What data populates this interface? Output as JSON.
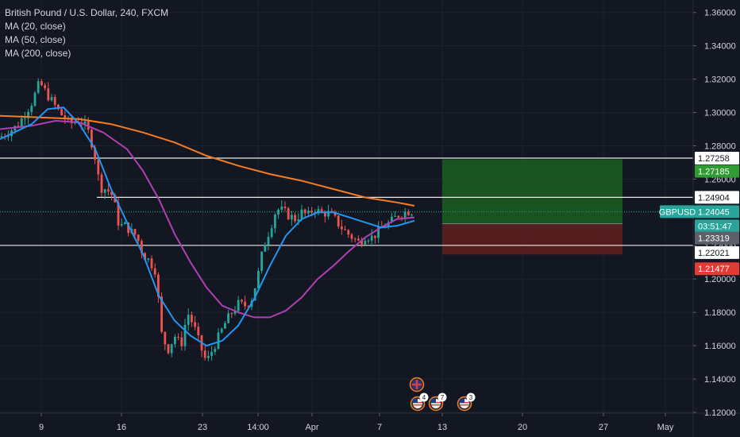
{
  "legend": {
    "title": "British Pound / U.S. Dollar, 240, FXCM",
    "indicators": [
      "MA (20, close)",
      "MA (50, close)",
      "MA (200, close)"
    ]
  },
  "colors": {
    "background": "#131722",
    "grid": "#1e222d",
    "text": "#d1d4dc",
    "candle_up": "#26a69a",
    "candle_down": "#ef5350",
    "ma20": "#2196f3",
    "ma50": "#b13fb4",
    "ma200": "#f57c23",
    "level_line": "#e8e8e8",
    "current_price": "#26a69a",
    "take_profit_zone": "#1b5e20",
    "stop_loss_zone": "#5c1f1f",
    "take_profit_badge": "#2e9c32",
    "stop_loss_badge": "#e53935",
    "entry_badge": "#5d606b"
  },
  "chart_data": {
    "type": "candlestick",
    "symbol": "GBPUSD",
    "y_ticks": [
      "1.36000",
      "1.34000",
      "1.32000",
      "1.30000",
      "1.28000",
      "1.26000",
      "1.24000",
      "1.22000",
      "1.20000",
      "1.18000",
      "1.16000",
      "1.14000",
      "1.12000"
    ],
    "x_ticks": [
      "9",
      "16",
      "23",
      "14:00",
      "Apr",
      "7",
      "13",
      "20",
      "27",
      "May"
    ],
    "ylim": [
      1.1195,
      1.3675
    ],
    "horizontal_levels": [
      1.27258,
      1.24904,
      1.22021
    ],
    "current_price": 1.24045,
    "price_badges": [
      {
        "label": "1.27258",
        "kind": "level"
      },
      {
        "label": "1.27185",
        "kind": "take_profit"
      },
      {
        "label": "1.24904",
        "kind": "level"
      },
      {
        "label": "1.24045",
        "kind": "current",
        "prefix": "GBPUSD"
      },
      {
        "label": "03:51:47",
        "kind": "countdown"
      },
      {
        "label": "1.23319",
        "kind": "entry"
      },
      {
        "label": "1.22021",
        "kind": "level"
      },
      {
        "label": "1.21477",
        "kind": "stop_loss"
      }
    ],
    "position": {
      "entry": 1.23319,
      "take_profit": 1.27185,
      "stop_loss": 1.21477
    },
    "price_waypoints": [
      [
        0,
        1.285
      ],
      [
        22,
        1.292
      ],
      [
        40,
        1.306
      ],
      [
        50,
        1.318
      ],
      [
        55,
        1.314
      ],
      [
        62,
        1.309
      ],
      [
        75,
        1.3
      ],
      [
        88,
        1.293
      ],
      [
        100,
        1.296
      ],
      [
        110,
        1.29
      ],
      [
        118,
        1.278
      ],
      [
        126,
        1.255
      ],
      [
        134,
        1.254
      ],
      [
        142,
        1.25
      ],
      [
        150,
        1.232
      ],
      [
        158,
        1.232
      ],
      [
        166,
        1.228
      ],
      [
        172,
        1.226
      ],
      [
        180,
        1.215
      ],
      [
        188,
        1.211
      ],
      [
        196,
        1.205
      ],
      [
        204,
        1.165
      ],
      [
        212,
        1.158
      ],
      [
        220,
        1.166
      ],
      [
        228,
        1.16
      ],
      [
        236,
        1.18
      ],
      [
        244,
        1.172
      ],
      [
        252,
        1.16
      ],
      [
        260,
        1.15
      ],
      [
        268,
        1.158
      ],
      [
        276,
        1.166
      ],
      [
        284,
        1.174
      ],
      [
        292,
        1.18
      ],
      [
        300,
        1.185
      ],
      [
        308,
        1.184
      ],
      [
        316,
        1.187
      ],
      [
        324,
        1.2
      ],
      [
        332,
        1.22
      ],
      [
        340,
        1.23
      ],
      [
        348,
        1.242
      ],
      [
        356,
        1.241
      ],
      [
        364,
        1.238
      ],
      [
        372,
        1.236
      ],
      [
        380,
        1.24
      ],
      [
        388,
        1.238
      ],
      [
        396,
        1.243
      ],
      [
        404,
        1.239
      ],
      [
        412,
        1.24
      ],
      [
        420,
        1.237
      ],
      [
        428,
        1.232
      ],
      [
        436,
        1.228
      ],
      [
        444,
        1.225
      ],
      [
        452,
        1.222
      ],
      [
        460,
        1.226
      ],
      [
        468,
        1.225
      ],
      [
        476,
        1.228
      ],
      [
        484,
        1.232
      ],
      [
        492,
        1.234
      ],
      [
        500,
        1.238
      ],
      [
        508,
        1.24
      ],
      [
        516,
        1.241
      ],
      [
        522,
        1.2405
      ]
    ],
    "ma20": [
      [
        0,
        1.284
      ],
      [
        40,
        1.293
      ],
      [
        60,
        1.302
      ],
      [
        80,
        1.303
      ],
      [
        100,
        1.293
      ],
      [
        120,
        1.278
      ],
      [
        140,
        1.254
      ],
      [
        160,
        1.234
      ],
      [
        180,
        1.215
      ],
      [
        200,
        1.19
      ],
      [
        220,
        1.175
      ],
      [
        240,
        1.166
      ],
      [
        260,
        1.16
      ],
      [
        280,
        1.163
      ],
      [
        300,
        1.172
      ],
      [
        320,
        1.188
      ],
      [
        340,
        1.208
      ],
      [
        360,
        1.226
      ],
      [
        380,
        1.236
      ],
      [
        400,
        1.24
      ],
      [
        420,
        1.24
      ],
      [
        440,
        1.237
      ],
      [
        460,
        1.234
      ],
      [
        480,
        1.231
      ],
      [
        500,
        1.232
      ],
      [
        522,
        1.235
      ]
    ],
    "ma50": [
      [
        0,
        1.29
      ],
      [
        40,
        1.292
      ],
      [
        70,
        1.295
      ],
      [
        100,
        1.294
      ],
      [
        130,
        1.288
      ],
      [
        160,
        1.278
      ],
      [
        180,
        1.265
      ],
      [
        200,
        1.248
      ],
      [
        220,
        1.227
      ],
      [
        240,
        1.21
      ],
      [
        260,
        1.195
      ],
      [
        280,
        1.184
      ],
      [
        300,
        1.18
      ],
      [
        320,
        1.177
      ],
      [
        340,
        1.177
      ],
      [
        360,
        1.181
      ],
      [
        380,
        1.189
      ],
      [
        400,
        1.2
      ],
      [
        420,
        1.208
      ],
      [
        440,
        1.217
      ],
      [
        460,
        1.225
      ],
      [
        480,
        1.231
      ],
      [
        500,
        1.236
      ],
      [
        522,
        1.237
      ]
    ],
    "ma200": [
      [
        0,
        1.298
      ],
      [
        50,
        1.297
      ],
      [
        100,
        1.296
      ],
      [
        140,
        1.293
      ],
      [
        180,
        1.288
      ],
      [
        220,
        1.282
      ],
      [
        260,
        1.274
      ],
      [
        300,
        1.268
      ],
      [
        340,
        1.263
      ],
      [
        380,
        1.259
      ],
      [
        420,
        1.254
      ],
      [
        460,
        1.249
      ],
      [
        500,
        1.246
      ],
      [
        522,
        1.244
      ]
    ]
  },
  "events": [
    {
      "icon": "flag-gb-icon",
      "count": ""
    },
    {
      "icon": "flag-us-icon",
      "count": "4"
    },
    {
      "icon": "flag-us-icon",
      "count": "7"
    },
    {
      "icon": "flag-us-icon",
      "count": "3"
    }
  ]
}
